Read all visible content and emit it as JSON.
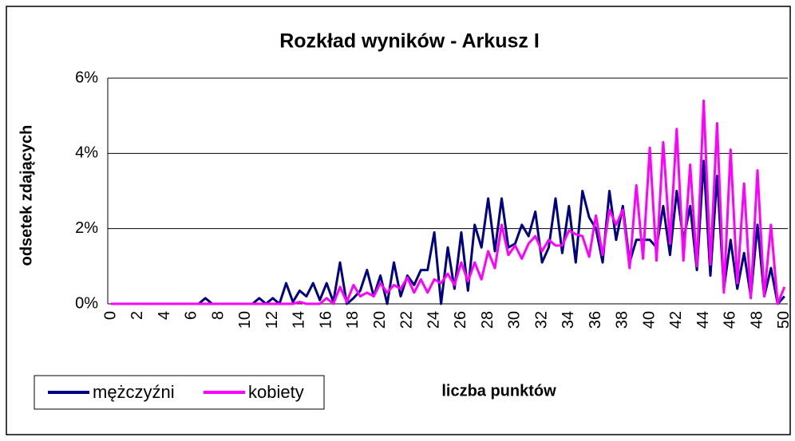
{
  "chart_data": {
    "type": "line",
    "title": "Rozkład wyników - Arkusz I",
    "x_label": "liczba punktów",
    "y_label": "odsetek zdających",
    "categories": [
      "0",
      null,
      null,
      null,
      "2",
      null,
      null,
      null,
      "4",
      null,
      null,
      null,
      "6",
      null,
      null,
      null,
      "8",
      null,
      null,
      null,
      "10",
      null,
      null,
      null,
      "12",
      null,
      null,
      null,
      "14",
      null,
      null,
      null,
      "16",
      null,
      null,
      null,
      "18",
      null,
      null,
      null,
      "20",
      null,
      null,
      null,
      "22",
      null,
      null,
      null,
      "24",
      null,
      null,
      null,
      "26",
      null,
      null,
      null,
      "28",
      null,
      null,
      null,
      "30",
      null,
      null,
      null,
      "32",
      null,
      null,
      null,
      "34",
      null,
      null,
      null,
      "36",
      null,
      null,
      null,
      "38",
      null,
      null,
      null,
      "40",
      null,
      null,
      null,
      "42",
      null,
      null,
      null,
      "44",
      null,
      null,
      null,
      "46",
      null,
      null,
      null,
      "48",
      null,
      null,
      null,
      "50"
    ],
    "series": [
      {
        "name": "mężczyźni",
        "color": "#000080",
        "values": [
          0,
          0,
          0,
          0,
          0,
          0,
          0,
          0,
          0,
          0,
          0,
          0,
          0,
          0,
          0.15,
          0,
          0,
          0,
          0,
          0,
          0,
          0,
          0.15,
          0,
          0.15,
          0,
          0.55,
          0.05,
          0.35,
          0.2,
          0.55,
          0.1,
          0.55,
          0.05,
          1.1,
          0,
          0.15,
          0.35,
          0.9,
          0.2,
          0.75,
          0,
          1.1,
          0.2,
          0.75,
          0.5,
          0.9,
          0.9,
          1.9,
          0,
          1.5,
          0.4,
          1.9,
          0.35,
          2.1,
          1.5,
          2.8,
          1.4,
          2.8,
          1.5,
          1.6,
          2.1,
          1.8,
          2.45,
          1.1,
          1.5,
          2.8,
          1.35,
          2.6,
          1.1,
          3.0,
          2.3,
          2.0,
          1.1,
          3.0,
          1.7,
          2.6,
          1.1,
          1.7,
          1.7,
          1.7,
          1.5,
          2.6,
          1.3,
          3.0,
          1.7,
          2.6,
          0.9,
          3.8,
          0.75,
          3.4,
          0.4,
          1.7,
          0.4,
          1.35,
          0.2,
          2.1,
          0.2,
          0.95,
          0,
          0.2
        ]
      },
      {
        "name": "kobiety",
        "color": "#ff00ff",
        "values": [
          0,
          0,
          0,
          0,
          0,
          0,
          0,
          0,
          0,
          0,
          0,
          0,
          0,
          0,
          0,
          0,
          0,
          0,
          0,
          0,
          0,
          0,
          0,
          0,
          0,
          0,
          0,
          0,
          0.05,
          0,
          0,
          0,
          0.15,
          0,
          0.45,
          0.05,
          0.5,
          0.2,
          0.3,
          0.2,
          0.55,
          0.3,
          0.5,
          0.4,
          0.7,
          0.3,
          0.65,
          0.3,
          0.65,
          0.55,
          0.8,
          0.5,
          1.1,
          0.6,
          1.1,
          0.65,
          1.4,
          0.95,
          2.1,
          1.3,
          1.55,
          1.2,
          1.6,
          1.8,
          1.4,
          1.7,
          1.55,
          1.55,
          1.95,
          1.85,
          1.8,
          1.25,
          2.35,
          1.3,
          2.5,
          2.1,
          2.5,
          0.95,
          3.15,
          1.2,
          4.15,
          1.15,
          4.3,
          1.6,
          4.65,
          1.15,
          3.7,
          1.0,
          5.4,
          1.05,
          4.8,
          0.3,
          4.1,
          0.55,
          3.2,
          0.15,
          3.55,
          0.2,
          2.1,
          0,
          0.45
        ]
      }
    ],
    "ylim": [
      0,
      6
    ],
    "yticks": [
      {
        "value": 0,
        "label": "0%"
      },
      {
        "value": 2,
        "label": "2%"
      },
      {
        "value": 4,
        "label": "4%"
      },
      {
        "value": 6,
        "label": "6%"
      }
    ],
    "grid": true,
    "legend": "bottom-left"
  }
}
